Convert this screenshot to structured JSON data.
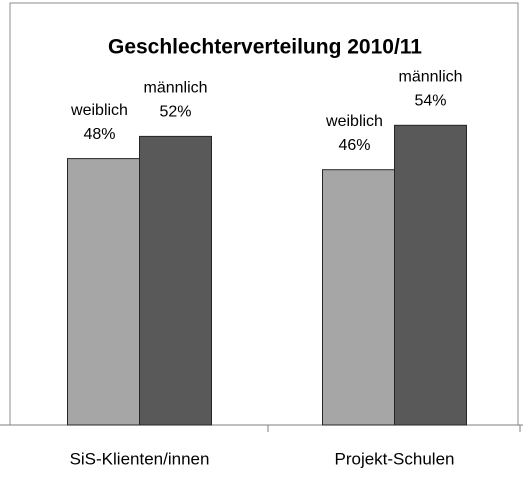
{
  "chart_data": {
    "type": "bar",
    "title": "Geschlechterverteilung 2010/11",
    "categories": [
      "SiS-Klienten/innen",
      "Projekt-Schulen"
    ],
    "series": [
      {
        "name": "weiblich",
        "color": "#a6a6a6",
        "values": [
          48,
          46
        ],
        "value_labels": [
          "48%",
          "46%"
        ]
      },
      {
        "name": "männlich",
        "color": "#595959",
        "values": [
          52,
          54
        ],
        "value_labels": [
          "52%",
          "54%"
        ]
      }
    ],
    "ylim": [
      0,
      60
    ]
  }
}
